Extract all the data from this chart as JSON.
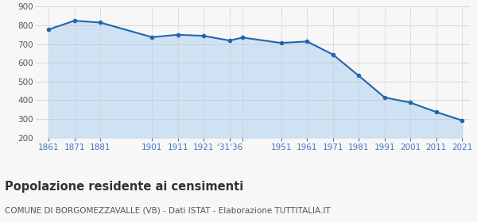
{
  "years": [
    1861,
    1871,
    1881,
    1901,
    1911,
    1921,
    1931,
    1936,
    1951,
    1961,
    1971,
    1981,
    1991,
    2001,
    2011,
    2021
  ],
  "population": [
    778,
    825,
    815,
    737,
    750,
    744,
    719,
    735,
    706,
    714,
    644,
    531,
    415,
    387,
    337,
    292
  ],
  "xtick_positions": [
    1861,
    1871,
    1881,
    1901,
    1911,
    1921,
    1931,
    1936,
    1951,
    1961,
    1971,
    1981,
    1991,
    2001,
    2011,
    2021
  ],
  "xtick_labels": [
    "1861",
    "1871",
    "1881",
    "1901",
    "1911",
    "1921",
    "'31'36",
    "",
    "1951",
    "1961",
    "1971",
    "1981",
    "1991",
    "2001",
    "2011",
    "2021"
  ],
  "line_color": "#2065b0",
  "fill_color": "#cfe2f3",
  "marker_color": "#2065b0",
  "background_color": "#f7f7f7",
  "grid_color": "#c8c8c8",
  "ylim": [
    200,
    900
  ],
  "yticks": [
    200,
    300,
    400,
    500,
    600,
    700,
    800,
    900
  ],
  "title": "Popolazione residente ai censimenti",
  "subtitle": "COMUNE DI BORGOMEZZAVALLE (VB) - Dati ISTAT - Elaborazione TUTTITALIA.IT",
  "title_fontsize": 10.5,
  "subtitle_fontsize": 7.5,
  "title_color": "#333333",
  "subtitle_color": "#555555",
  "axis_label_color": "#4472c4",
  "tick_label_fontsize": 7.5,
  "ytick_color": "#555555"
}
